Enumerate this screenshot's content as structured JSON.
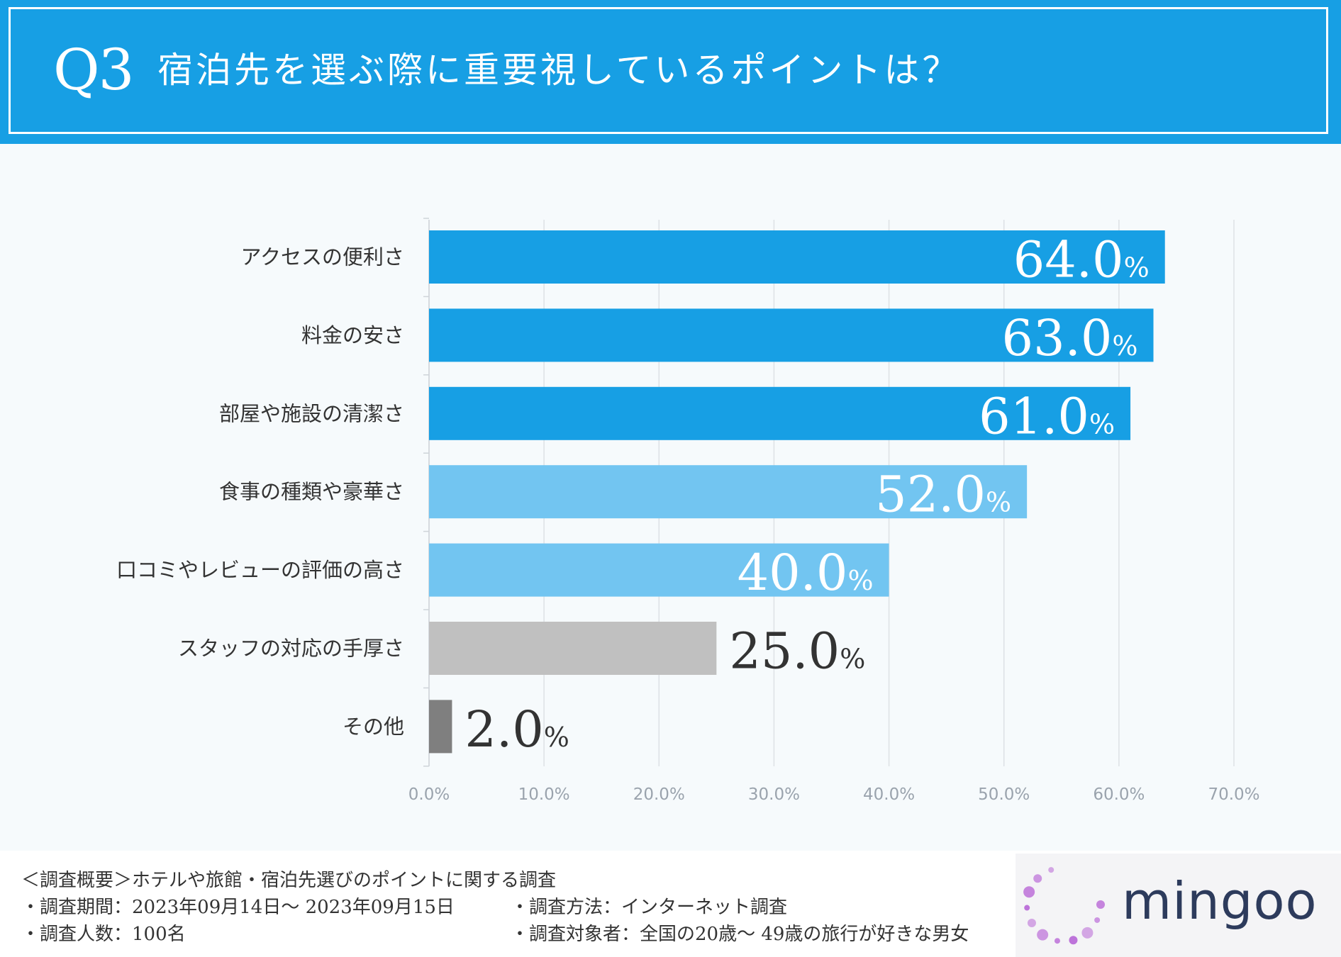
{
  "header": {
    "q_number": "Q3",
    "title": "宿泊先を選ぶ際に重要視しているポイントは？"
  },
  "chart_data": {
    "type": "bar",
    "orientation": "horizontal",
    "title": "宿泊先を選ぶ際に重要視しているポイントは？",
    "categories": [
      "アクセスの便利さ",
      "料金の安さ",
      "部屋や施設の清潔さ",
      "食事の種類や豪華さ",
      "口コミやレビューの評価の高さ",
      "スタッフの対応の手厚さ",
      "その他"
    ],
    "values": [
      64.0,
      63.0,
      61.0,
      52.0,
      40.0,
      25.0,
      2.0
    ],
    "value_labels": [
      "64.0",
      "63.0",
      "61.0",
      "52.0",
      "40.0",
      "25.0",
      "2.0"
    ],
    "value_unit": "%",
    "bar_colors": [
      "#179fe4",
      "#179fe4",
      "#179fe4",
      "#72c5f1",
      "#72c5f1",
      "#c0c0c0",
      "#7f7f7f"
    ],
    "value_label_colors": [
      "#ffffff",
      "#ffffff",
      "#ffffff",
      "#ffffff",
      "#ffffff",
      "#333333",
      "#333333"
    ],
    "xlim": [
      0,
      70
    ],
    "x_ticks": [
      0,
      10,
      20,
      30,
      40,
      50,
      60,
      70
    ],
    "x_tick_labels": [
      "0.0%",
      "10.0%",
      "20.0%",
      "30.0%",
      "40.0%",
      "50.0%",
      "60.0%",
      "70.0%"
    ],
    "grid": true,
    "xlabel": "",
    "ylabel": ""
  },
  "footer": {
    "summary": "＜調査概要＞ホテルや旅館・宿泊先選びのポイントに関する調査",
    "period": "・調査期間：2023年09月14日～ 2023年09月15日",
    "count": "・調査人数：100名",
    "method": "・調査方法：インターネット調査",
    "target": "・調査対象者：全国の20歳～ 49歳の旅行が好きな男女"
  },
  "logo": {
    "text": "mingoo"
  },
  "colors": {
    "header_bg": "#179fe4",
    "page_bg": "#f6fafc",
    "logo_text": "#2d3b5c",
    "logo_dots": "#b866d6"
  }
}
